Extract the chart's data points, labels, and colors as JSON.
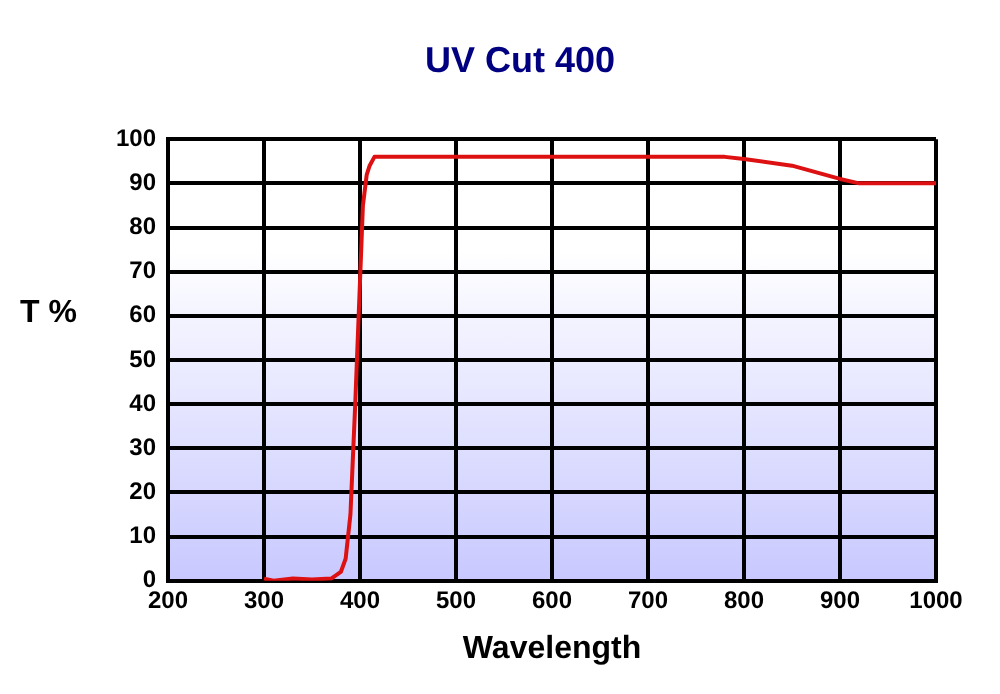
{
  "chart_data": {
    "type": "line",
    "title": "UV Cut 400",
    "xlabel": "Wavelength",
    "ylabel": "T %",
    "series": [
      {
        "color": "#dd1111",
        "x": [
          300,
          310,
          330,
          350,
          370,
          380,
          385,
          390,
          395,
          400,
          403,
          407,
          410,
          415,
          420,
          780,
          800,
          850,
          900,
          920,
          1000
        ],
        "values": [
          0.5,
          0,
          0.5,
          0.3,
          0.5,
          2,
          5,
          15,
          40,
          68,
          85,
          92,
          94,
          96,
          96,
          96,
          95.5,
          94,
          91,
          90,
          90
        ]
      }
    ],
    "xlim": [
      200,
      1000
    ],
    "xticks": [
      200,
      300,
      400,
      500,
      600,
      700,
      800,
      900,
      1000
    ],
    "ylim": [
      0,
      100
    ],
    "yticks": [
      0,
      10,
      20,
      30,
      40,
      50,
      60,
      70,
      80,
      90,
      100
    ],
    "grid": true,
    "legend": false,
    "marker": "none",
    "line_style": "solid"
  }
}
